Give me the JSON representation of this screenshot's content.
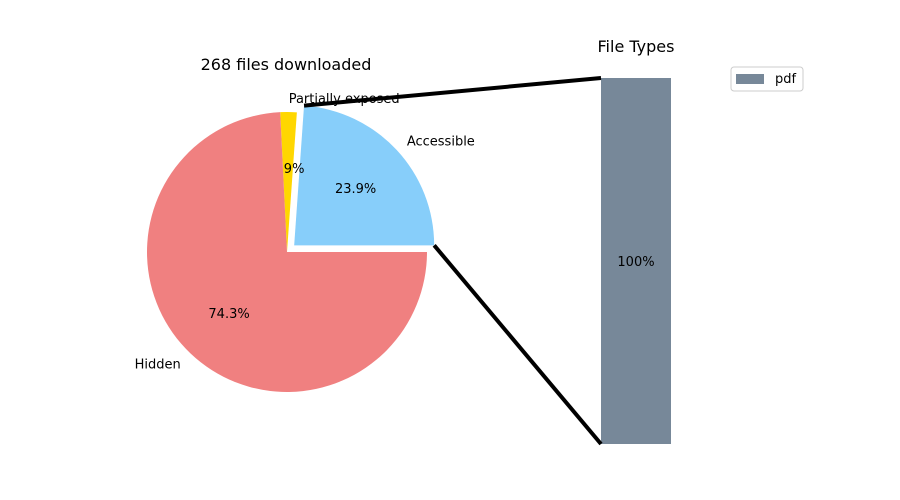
{
  "chart_data": [
    {
      "type": "pie",
      "title": "268 files downloaded",
      "slices": [
        {
          "label": "Accessible",
          "value": 23.9,
          "pct_label": "23.9%",
          "color": "#87CEFA",
          "exploded": true
        },
        {
          "label": "Partially exposed",
          "value": 1.9,
          "pct_label": "1.9%",
          "color": "#FFD700",
          "exploded": false
        },
        {
          "label": "Hidden",
          "value": 74.3,
          "pct_label": "74.3%",
          "color": "#F08080",
          "exploded": false
        }
      ],
      "start_angle_deg": 0,
      "direction": "counterclockwise"
    },
    {
      "type": "bar",
      "stacked": true,
      "title": "File Types",
      "categories": [
        ""
      ],
      "series": [
        {
          "name": "pdf",
          "values": [
            100
          ],
          "value_label": "100%",
          "color": "#778899"
        }
      ],
      "legend": {
        "placement": "top-right"
      },
      "axes_visible": false,
      "connects_to_slice": "Accessible"
    }
  ]
}
